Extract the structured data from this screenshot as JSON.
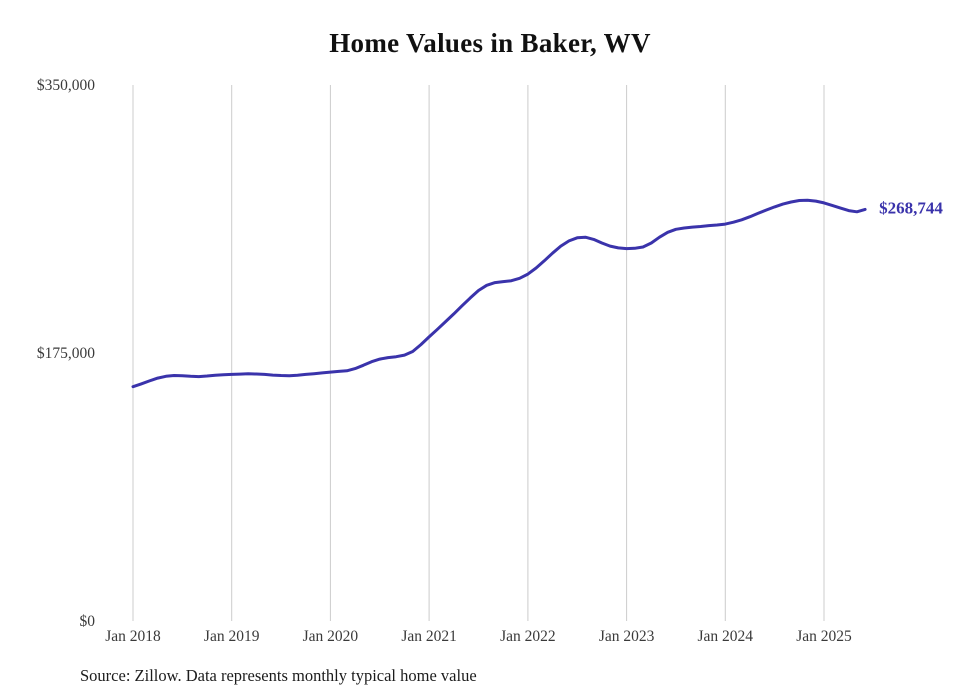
{
  "page": {
    "title": "Home Values in Baker, WV",
    "source_note": "Source: Zillow. Data represents monthly typical home value"
  },
  "chart_data": {
    "type": "line",
    "title": "Home Values in Baker, WV",
    "series_name": "Monthly typical home value",
    "x_start": "Jan 2018",
    "x_interval": "month",
    "x_tick_labels": [
      "Jan 2018",
      "Jan 2019",
      "Jan 2020",
      "Jan 2021",
      "Jan 2022",
      "Jan 2023",
      "Jan 2024",
      "Jan 2025"
    ],
    "x_tick_month_indices": [
      0,
      12,
      24,
      36,
      48,
      60,
      72,
      84
    ],
    "y_tick_labels": [
      "$0",
      "$175,000",
      "$350,000"
    ],
    "y_tick_values": [
      0,
      175000,
      350000
    ],
    "ylim": [
      0,
      350000
    ],
    "grid": "vertical",
    "legend": "none",
    "line_color": "#3a33ab",
    "grid_color": "#cccccc",
    "axis_text_color": "#3a3a3a",
    "end_label": "$268,744",
    "final_value": 268744,
    "values": [
      153000,
      154800,
      156800,
      158600,
      159800,
      160300,
      160200,
      159800,
      159600,
      160000,
      160500,
      160800,
      161000,
      161200,
      161400,
      161300,
      161000,
      160600,
      160300,
      160200,
      160500,
      161000,
      161500,
      162000,
      162500,
      163000,
      163400,
      164800,
      167000,
      169300,
      171000,
      172000,
      172600,
      173600,
      176000,
      180500,
      185500,
      190500,
      195500,
      200500,
      205800,
      211000,
      215800,
      219200,
      221000,
      221600,
      222200,
      223800,
      226500,
      230500,
      235200,
      240200,
      244800,
      248200,
      250200,
      250600,
      249200,
      246800,
      244800,
      243600,
      243200,
      243400,
      244200,
      246800,
      250600,
      253800,
      255800,
      256600,
      257200,
      257600,
      258200,
      258600,
      259200,
      260400,
      262000,
      264000,
      266200,
      268400,
      270400,
      272200,
      273600,
      274600,
      274800,
      274200,
      273000,
      271400,
      269600,
      268000,
      267200,
      268744
    ]
  }
}
